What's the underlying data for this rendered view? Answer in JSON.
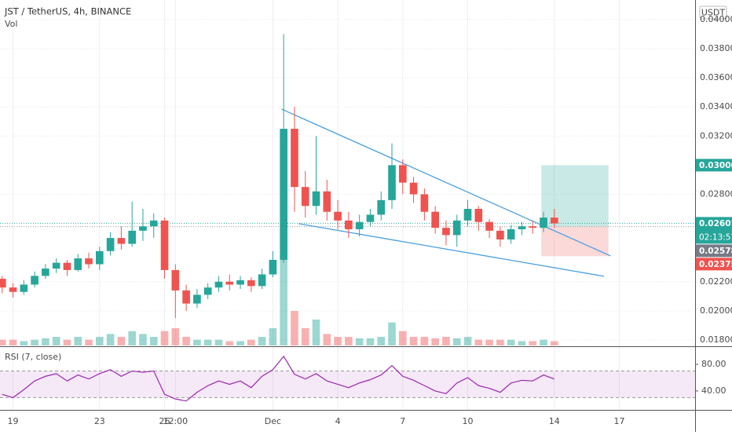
{
  "chart_data": {
    "type": "candlestick",
    "title": "JST / TetherUS, 4h, BINANCE",
    "volume_label": "Vol",
    "currency": "USDT",
    "x": [
      18.5,
      19,
      19.5,
      20,
      20.5,
      21,
      21.5,
      22,
      22.5,
      23,
      23.5,
      24,
      24.5,
      25,
      25.5,
      26,
      26.5,
      27,
      27.5,
      28,
      28.5,
      29,
      29.5,
      30,
      30.5,
      31,
      31.5,
      32,
      32.5,
      33,
      33.5,
      34,
      34.5,
      35,
      35.5,
      36,
      36.5,
      37,
      37.5,
      38,
      38.5,
      39,
      39.5,
      40,
      40.5,
      41,
      41.5,
      42,
      42.5,
      43,
      43.5,
      44
    ],
    "open": [
      0.0222,
      0.0216,
      0.0213,
      0.0218,
      0.0224,
      0.0229,
      0.0233,
      0.0228,
      0.0236,
      0.0232,
      0.0241,
      0.025,
      0.0246,
      0.0255,
      0.0258,
      0.0262,
      0.0228,
      0.0214,
      0.0205,
      0.0211,
      0.0216,
      0.022,
      0.0218,
      0.0221,
      0.0217,
      0.0225,
      0.0235,
      0.0325,
      0.0285,
      0.0272,
      0.0282,
      0.0268,
      0.0262,
      0.0256,
      0.0261,
      0.0266,
      0.0276,
      0.03,
      0.0288,
      0.028,
      0.0268,
      0.0257,
      0.0252,
      0.0262,
      0.027,
      0.0261,
      0.0255,
      0.0249,
      0.0256,
      0.0258,
      0.0257,
      0.0264
    ],
    "high": [
      0.0224,
      0.0219,
      0.0221,
      0.0227,
      0.0232,
      0.0236,
      0.0235,
      0.0239,
      0.024,
      0.0244,
      0.0254,
      0.0258,
      0.0275,
      0.027,
      0.0267,
      0.0264,
      0.0232,
      0.0218,
      0.0215,
      0.0219,
      0.0224,
      0.0225,
      0.0224,
      0.0223,
      0.0229,
      0.0241,
      0.039,
      0.034,
      0.0296,
      0.032,
      0.029,
      0.0276,
      0.0268,
      0.0266,
      0.027,
      0.0282,
      0.0315,
      0.0304,
      0.0292,
      0.0284,
      0.0272,
      0.0262,
      0.0266,
      0.0276,
      0.0272,
      0.0263,
      0.0258,
      0.0259,
      0.0261,
      0.0262,
      0.0268,
      0.027
    ],
    "low": [
      0.0212,
      0.0209,
      0.0211,
      0.0216,
      0.0222,
      0.0226,
      0.0224,
      0.0227,
      0.0229,
      0.0228,
      0.0238,
      0.0242,
      0.0244,
      0.0248,
      0.025,
      0.0222,
      0.0195,
      0.02,
      0.0202,
      0.0208,
      0.0213,
      0.0214,
      0.0215,
      0.0213,
      0.0215,
      0.0223,
      0.0233,
      0.0268,
      0.0264,
      0.0266,
      0.0262,
      0.0256,
      0.025,
      0.0251,
      0.0258,
      0.0262,
      0.027,
      0.028,
      0.0274,
      0.0262,
      0.0253,
      0.0245,
      0.0244,
      0.0258,
      0.0255,
      0.025,
      0.0244,
      0.0246,
      0.0252,
      0.0253,
      0.0254,
      0.0257
    ],
    "close": [
      0.0216,
      0.0213,
      0.0218,
      0.0224,
      0.0229,
      0.0233,
      0.0228,
      0.0236,
      0.0232,
      0.0241,
      0.025,
      0.0246,
      0.0255,
      0.0258,
      0.0262,
      0.0228,
      0.0214,
      0.0205,
      0.0211,
      0.0216,
      0.022,
      0.0218,
      0.0221,
      0.0217,
      0.0225,
      0.0235,
      0.0325,
      0.0285,
      0.0272,
      0.0282,
      0.0268,
      0.0262,
      0.0256,
      0.0261,
      0.0266,
      0.0276,
      0.03,
      0.0288,
      0.028,
      0.0268,
      0.0257,
      0.0252,
      0.0262,
      0.027,
      0.0261,
      0.0255,
      0.0249,
      0.0256,
      0.0258,
      0.0257,
      0.0264,
      0.026
    ],
    "volume": [
      2,
      2,
      1.5,
      2,
      2.5,
      3,
      2,
      3,
      2,
      3,
      4,
      3,
      5,
      4,
      3,
      5,
      6,
      3,
      2,
      2,
      2,
      1.5,
      1.5,
      2,
      3,
      6,
      30,
      12,
      6,
      9,
      4,
      3,
      3,
      2.5,
      2.5,
      3,
      8,
      5,
      3,
      3,
      2.5,
      3,
      2.5,
      3,
      2,
      2,
      2,
      2,
      1.5,
      1.5,
      2,
      1.5
    ],
    "up_color": "#26a69a",
    "down_color": "#ef5350",
    "xlim": [
      18.4,
      50.5
    ],
    "xticks": [
      {
        "value": 19,
        "label": "19"
      },
      {
        "value": 23,
        "label": "23"
      },
      {
        "value": 26,
        "label": "26"
      },
      {
        "value": 26.5,
        "label": "12:00"
      },
      {
        "value": 31,
        "label": "Dec"
      },
      {
        "value": 34,
        "label": "4"
      },
      {
        "value": 37,
        "label": "7"
      },
      {
        "value": 40,
        "label": "10"
      },
      {
        "value": 44,
        "label": "14"
      },
      {
        "value": 47,
        "label": "17"
      }
    ],
    "ylim": [
      0.01762,
      0.04134
    ],
    "yticks": [
      {
        "value": 0.018,
        "label": "0.01800"
      },
      {
        "value": 0.02,
        "label": "0.02000"
      },
      {
        "value": 0.022,
        "label": "0.02200"
      },
      {
        "value": 0.028,
        "label": "0.02800"
      },
      {
        "value": 0.032,
        "label": "0.03200"
      },
      {
        "value": 0.034,
        "label": "0.03400"
      },
      {
        "value": 0.036,
        "label": "0.03600"
      },
      {
        "value": 0.038,
        "label": "0.03800"
      },
      {
        "value": 0.04,
        "label": "0.04000"
      }
    ],
    "grid": true,
    "trendline_color": "#4a9fe0",
    "trendlines": [
      {
        "x": [
          31.4,
          46.6
        ],
        "y": [
          0.03385,
          0.02377
        ]
      },
      {
        "x": [
          32.2,
          46.3
        ],
        "y": [
          0.02598,
          0.02237
        ]
      }
    ],
    "position": {
      "x": [
        43.4,
        46.5
      ],
      "entry": 0.02578,
      "target": 0.03,
      "stop": 0.02375,
      "target_color": "#26a69a",
      "stop_color": "#ef5350"
    },
    "price_labels": [
      {
        "value": 0.03,
        "label": "0.03000",
        "color": "#26a69a"
      },
      {
        "value": 0.02601,
        "label": "0.02601",
        "color": "#26a69a"
      },
      {
        "value": 0.02578,
        "label": "0.02578",
        "color": "#787b86"
      },
      {
        "value": 0.02375,
        "label": "0.02375",
        "color": "#ef5350"
      }
    ],
    "countdown": "02:13:51",
    "rsi": {
      "title": "RSI (7, close)",
      "color": "#9c27b0",
      "band": [
        30,
        70
      ],
      "ylim": [
        14,
        100
      ],
      "yticks": [
        {
          "value": 40,
          "label": "40.00"
        },
        {
          "value": 80,
          "label": "80.00"
        }
      ],
      "values": [
        35,
        30,
        42,
        55,
        62,
        66,
        55,
        64,
        58,
        66,
        72,
        62,
        70,
        68,
        70,
        35,
        28,
        25,
        38,
        48,
        55,
        50,
        55,
        45,
        62,
        72,
        92,
        65,
        58,
        66,
        55,
        50,
        45,
        52,
        57,
        64,
        78,
        62,
        56,
        48,
        40,
        36,
        52,
        60,
        48,
        44,
        38,
        52,
        56,
        55,
        64,
        58
      ]
    }
  }
}
